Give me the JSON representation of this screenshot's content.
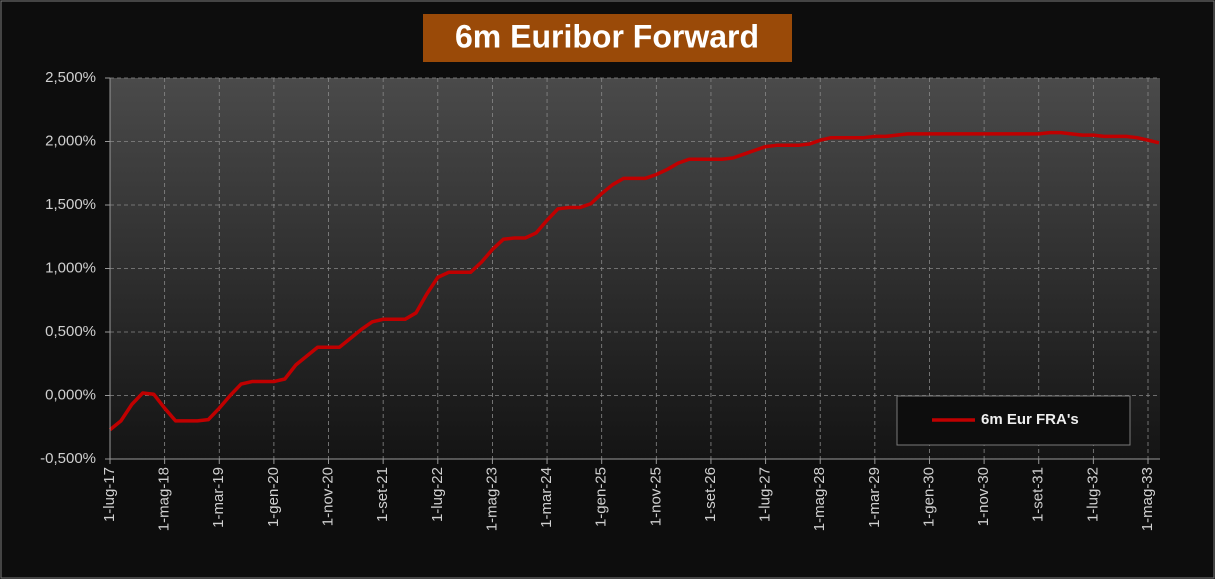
{
  "chart_data": {
    "type": "line",
    "title": "6m Euribor Forward",
    "categories": [
      "1-lug-17",
      null,
      null,
      null,
      null,
      "1-mag-18",
      null,
      null,
      null,
      null,
      "1-mar-19",
      null,
      null,
      null,
      null,
      "1-gen-20",
      null,
      null,
      null,
      null,
      "1-nov-20",
      null,
      null,
      null,
      null,
      "1-set-21",
      null,
      null,
      null,
      null,
      "1-lug-22",
      null,
      null,
      null,
      null,
      "1-mag-23",
      null,
      null,
      null,
      null,
      "1-mar-24",
      null,
      null,
      null,
      null,
      "1-gen-25",
      null,
      null,
      null,
      null,
      "1-nov-25",
      null,
      null,
      null,
      null,
      "1-set-26",
      null,
      null,
      null,
      null,
      "1-lug-27",
      null,
      null,
      null,
      null,
      "1-mag-28",
      null,
      null,
      null,
      null,
      "1-mar-29",
      null,
      null,
      null,
      null,
      "1-gen-30",
      null,
      null,
      null,
      null,
      "1-nov-30",
      null,
      null,
      null,
      null,
      "1-set-31",
      null,
      null,
      null,
      null,
      "1-lug-32",
      null,
      null,
      null,
      null,
      "1-mag-33",
      null
    ],
    "series": [
      {
        "name": "6m Eur FRA's",
        "color": "#c00000",
        "values": [
          -0.27,
          -0.2,
          -0.07,
          0.02,
          0.01,
          -0.1,
          -0.2,
          -0.2,
          -0.2,
          -0.19,
          -0.1,
          0,
          0.09,
          0.11,
          0.11,
          0.11,
          0.13,
          0.24,
          0.31,
          0.38,
          0.38,
          0.38,
          0.45,
          0.52,
          0.58,
          0.6,
          0.6,
          0.6,
          0.65,
          0.8,
          0.93,
          0.97,
          0.97,
          0.97,
          1.05,
          1.15,
          1.23,
          1.24,
          1.24,
          1.28,
          1.38,
          1.47,
          1.48,
          1.48,
          1.51,
          1.59,
          1.66,
          1.71,
          1.71,
          1.71,
          1.74,
          1.78,
          1.83,
          1.86,
          1.86,
          1.86,
          1.86,
          1.87,
          1.9,
          1.93,
          1.96,
          1.97,
          1.97,
          1.97,
          1.98,
          2.01,
          2.03,
          2.03,
          2.03,
          2.03,
          2.04,
          2.04,
          2.05,
          2.06,
          2.06,
          2.06,
          2.06,
          2.06,
          2.06,
          2.06,
          2.06,
          2.06,
          2.06,
          2.06,
          2.06,
          2.06,
          2.07,
          2.07,
          2.06,
          2.05,
          2.05,
          2.04,
          2.04,
          2.04,
          2.03,
          2.01,
          1.99
        ]
      }
    ],
    "ylim": [
      -0.5,
      2.5
    ],
    "yticks": [
      {
        "value": -0.5,
        "label": "-0,500%"
      },
      {
        "value": 0,
        "label": "0,000%"
      },
      {
        "value": 0.5,
        "label": "0,500%"
      },
      {
        "value": 1,
        "label": "1,000%"
      },
      {
        "value": 1.5,
        "label": "1,500%"
      },
      {
        "value": 2,
        "label": "2,000%"
      },
      {
        "value": 2.5,
        "label": "2,500%"
      }
    ],
    "grid": true,
    "legend": "lower right"
  }
}
